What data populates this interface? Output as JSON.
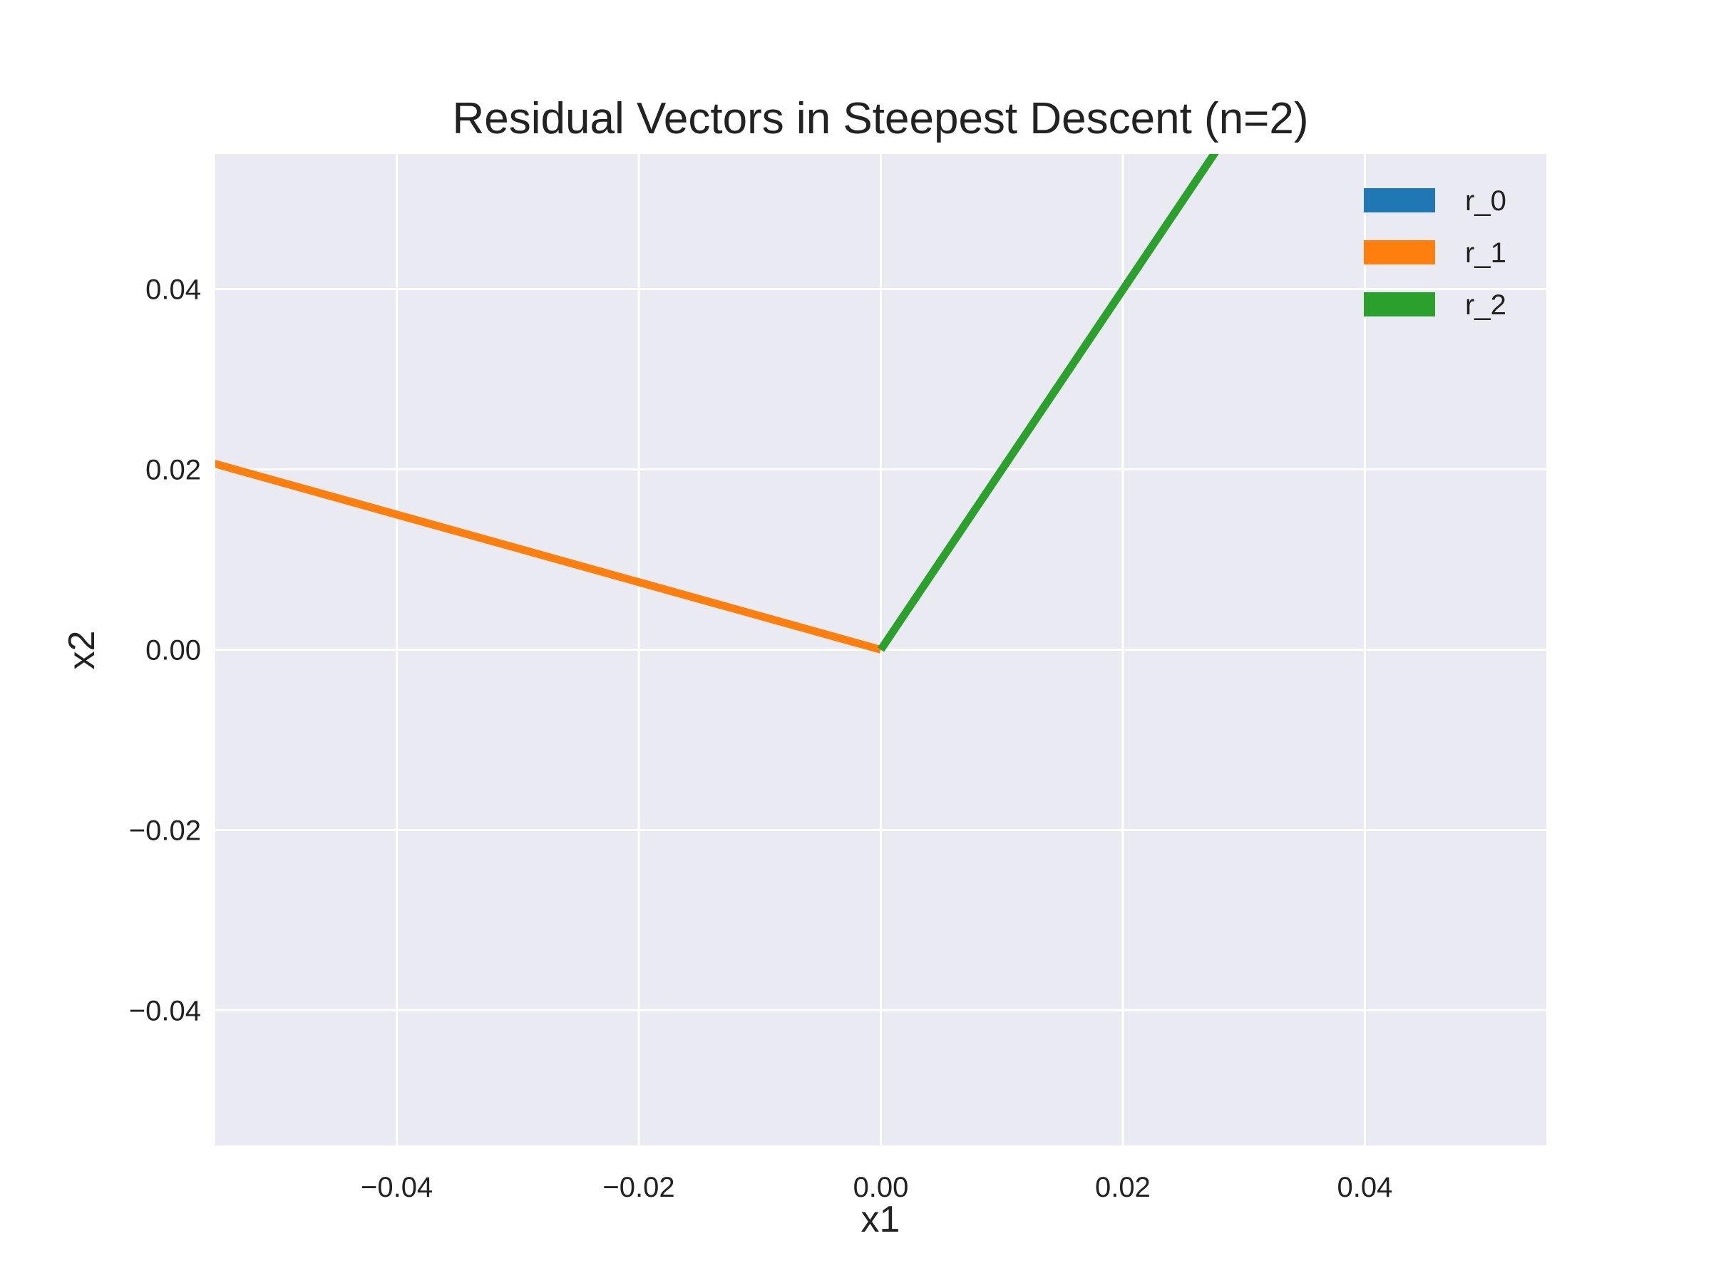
{
  "chart_data": {
    "type": "line",
    "title": "Residual Vectors in Steepest Descent (n=2)",
    "xlabel": "x1",
    "ylabel": "x2",
    "xlim": [
      -0.055,
      0.055
    ],
    "ylim": [
      -0.055,
      0.055
    ],
    "xticks": [
      -0.04,
      -0.02,
      0.0,
      0.02,
      0.04
    ],
    "yticks": [
      -0.04,
      -0.02,
      0.0,
      0.02,
      0.04
    ],
    "xtick_labels": [
      "−0.04",
      "−0.02",
      "0.00",
      "0.02",
      "0.04"
    ],
    "ytick_labels": [
      "−0.04",
      "−0.02",
      "0.00",
      "0.02",
      "0.04"
    ],
    "grid": true,
    "legend_position": "top-right",
    "series": [
      {
        "name": "r_0",
        "color": "#1f77b4",
        "x": [
          0,
          0
        ],
        "y": [
          0,
          0
        ]
      },
      {
        "name": "r_1",
        "color": "#ff7f0e",
        "x": [
          0,
          -0.0555
        ],
        "y": [
          0,
          0.0208
        ]
      },
      {
        "name": "r_2",
        "color": "#2ca02c",
        "x": [
          0,
          0.0278
        ],
        "y": [
          0,
          0.0555
        ]
      }
    ]
  }
}
